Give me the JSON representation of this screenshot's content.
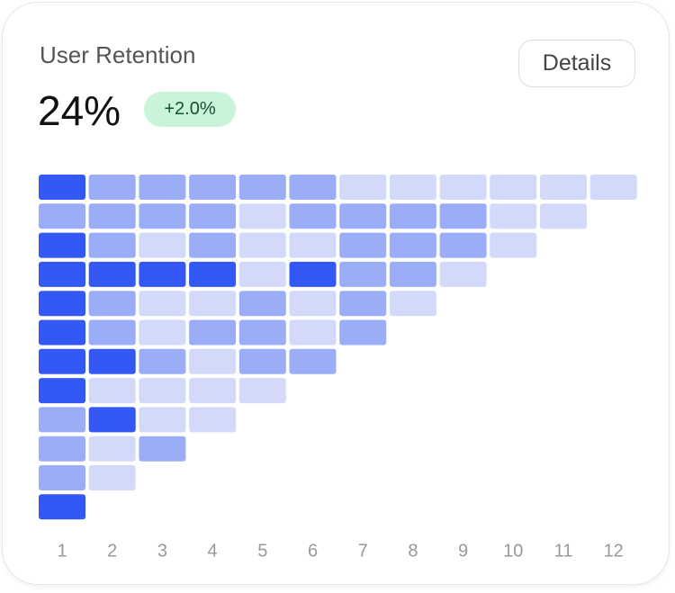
{
  "header": {
    "title": "User Retention",
    "value": "24%",
    "change": "+2.0%",
    "button": "Details"
  },
  "chart_data": {
    "type": "heatmap",
    "columns": [
      "1",
      "2",
      "3",
      "4",
      "5",
      "6",
      "7",
      "8",
      "9",
      "10",
      "11",
      "12"
    ],
    "colors": [
      "#d3daf9",
      "#9badf7",
      "#3358f4"
    ],
    "levels": [
      1,
      2,
      3
    ],
    "rows": [
      [
        3,
        2,
        2,
        2,
        2,
        2,
        1,
        1,
        1,
        1,
        1,
        1
      ],
      [
        2,
        2,
        2,
        2,
        1,
        2,
        2,
        2,
        2,
        1,
        1
      ],
      [
        3,
        2,
        1,
        2,
        1,
        1,
        2,
        2,
        2,
        1
      ],
      [
        3,
        3,
        3,
        3,
        1,
        3,
        2,
        2,
        1
      ],
      [
        3,
        2,
        1,
        1,
        2,
        1,
        2,
        1
      ],
      [
        3,
        2,
        1,
        2,
        2,
        1,
        2
      ],
      [
        3,
        3,
        2,
        1,
        2,
        2
      ],
      [
        3,
        1,
        1,
        1,
        1
      ],
      [
        2,
        3,
        1,
        1
      ],
      [
        2,
        1,
        2
      ],
      [
        2,
        1
      ],
      [
        3
      ]
    ]
  }
}
